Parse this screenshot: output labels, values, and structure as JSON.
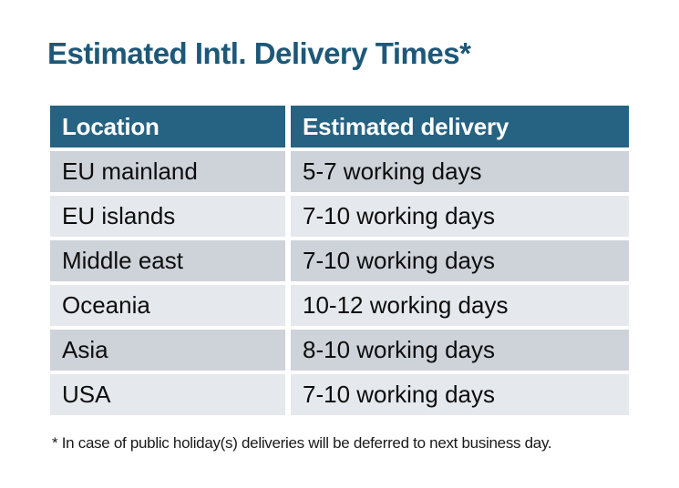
{
  "title": "Estimated Intl. Delivery Times*",
  "colors": {
    "title_text": "#1d5878",
    "header_bg": "#266282",
    "header_text": "#ffffff",
    "row_dark": "#ced2d9",
    "row_light": "#e5e8ec",
    "body_text": "#0d0d0d",
    "background": "#ffffff"
  },
  "table": {
    "columns": [
      "Location",
      "Estimated delivery"
    ],
    "rows": [
      {
        "location": "EU mainland",
        "delivery": "5-7 working days"
      },
      {
        "location": "EU islands",
        "delivery": "7-10 working days"
      },
      {
        "location": "Middle east",
        "delivery": "7-10 working days"
      },
      {
        "location": "Oceania",
        "delivery": "10-12 working days"
      },
      {
        "location": "Asia",
        "delivery": "8-10 working days"
      },
      {
        "location": "USA",
        "delivery": "7-10 working days"
      }
    ]
  },
  "footnote": "* In case of public holiday(s) deliveries will be deferred to next business day."
}
